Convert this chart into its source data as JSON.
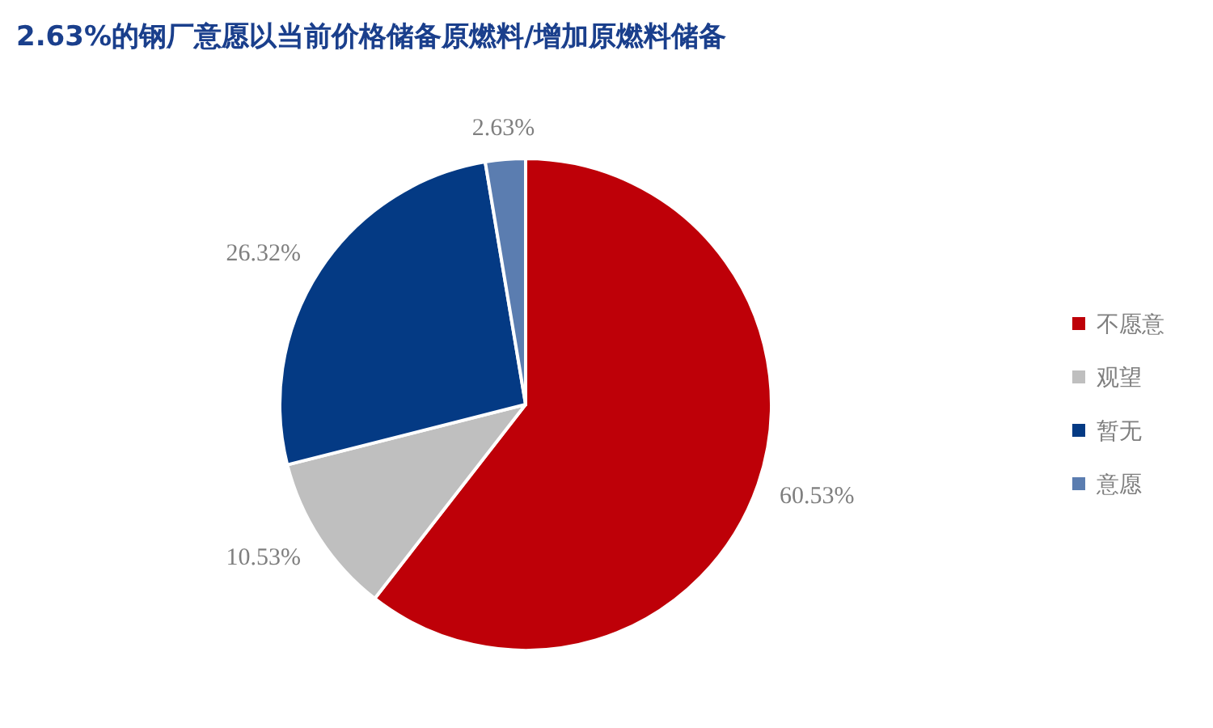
{
  "chart_data": {
    "type": "pie",
    "title": "2.63%的钢厂意愿以当前价格储备原燃料/增加原燃料储备",
    "categories": [
      "不愿意",
      "观望",
      "暂无",
      "意愿"
    ],
    "values": [
      60.53,
      10.53,
      26.32,
      2.63
    ],
    "colors": [
      "#be0008",
      "#bfbfbf",
      "#043a84",
      "#5b7db0"
    ],
    "value_labels": [
      "60.53%",
      "10.53%",
      "26.32%",
      "2.63%"
    ],
    "legend": "right"
  }
}
